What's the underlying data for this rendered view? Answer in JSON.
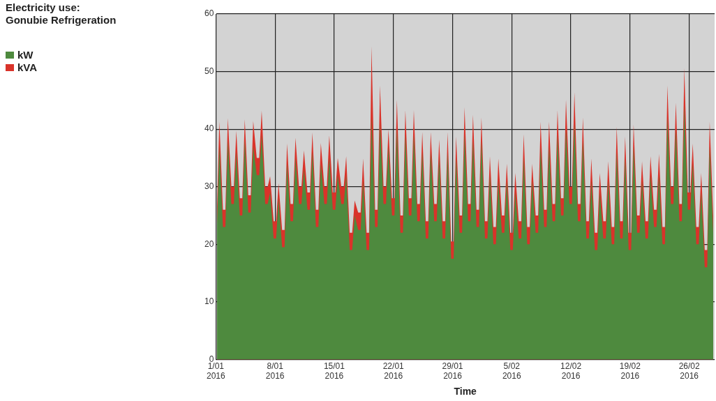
{
  "chart_data": {
    "type": "area",
    "title": "Electricity use:",
    "subtitle": "Gonubie Refrigeration",
    "xlabel": "Time",
    "legend": "left",
    "grid": true,
    "marker": "none",
    "xlim": [
      "2016-01-01",
      "2016-02-29"
    ],
    "xticks": [
      {
        "value": "2016-01-01",
        "label": "1/01 2016"
      },
      {
        "value": "2016-01-08",
        "label": "8/01 2016"
      },
      {
        "value": "2016-01-15",
        "label": "15/01 2016"
      },
      {
        "value": "2016-01-22",
        "label": "22/01 2016"
      },
      {
        "value": "2016-01-29",
        "label": "29/01 2016"
      },
      {
        "value": "2016-02-05",
        "label": "5/02 2016"
      },
      {
        "value": "2016-02-12",
        "label": "12/02 2016"
      },
      {
        "value": "2016-02-19",
        "label": "19/02 2016"
      },
      {
        "value": "2016-02-26",
        "label": "26/02 2016"
      }
    ],
    "ylim": [
      0,
      60
    ],
    "yticks": [
      0,
      10,
      20,
      30,
      40,
      50,
      60
    ],
    "x": [
      "2016-01-01T03:00",
      "2016-01-01T10:00",
      "2016-01-01T20:00",
      "2016-01-02T03:00",
      "2016-01-02T10:00",
      "2016-01-02T20:00",
      "2016-01-03T03:00",
      "2016-01-03T10:00",
      "2016-01-03T20:00",
      "2016-01-04T03:00",
      "2016-01-04T10:00",
      "2016-01-04T20:00",
      "2016-01-05T03:00",
      "2016-01-05T10:00",
      "2016-01-05T20:00",
      "2016-01-06T03:00",
      "2016-01-06T10:00",
      "2016-01-06T20:00",
      "2016-01-07T03:00",
      "2016-01-07T10:00",
      "2016-01-07T20:00",
      "2016-01-08T03:00",
      "2016-01-08T10:00",
      "2016-01-08T20:00",
      "2016-01-09T03:00",
      "2016-01-09T10:00",
      "2016-01-09T20:00",
      "2016-01-10T03:00",
      "2016-01-10T10:00",
      "2016-01-10T20:00",
      "2016-01-11T03:00",
      "2016-01-11T10:00",
      "2016-01-11T20:00",
      "2016-01-12T03:00",
      "2016-01-12T10:00",
      "2016-01-12T20:00",
      "2016-01-13T03:00",
      "2016-01-13T10:00",
      "2016-01-13T20:00",
      "2016-01-14T03:00",
      "2016-01-14T10:00",
      "2016-01-14T20:00",
      "2016-01-15T03:00",
      "2016-01-15T10:00",
      "2016-01-15T20:00",
      "2016-01-16T03:00",
      "2016-01-16T10:00",
      "2016-01-16T20:00",
      "2016-01-17T03:00",
      "2016-01-17T10:00",
      "2016-01-17T20:00",
      "2016-01-18T03:00",
      "2016-01-18T10:00",
      "2016-01-18T20:00",
      "2016-01-19T03:00",
      "2016-01-19T10:00",
      "2016-01-19T20:00",
      "2016-01-20T03:00",
      "2016-01-20T10:00",
      "2016-01-20T20:00",
      "2016-01-21T03:00",
      "2016-01-21T10:00",
      "2016-01-21T20:00",
      "2016-01-22T03:00",
      "2016-01-22T10:00",
      "2016-01-22T20:00",
      "2016-01-23T03:00",
      "2016-01-23T10:00",
      "2016-01-23T20:00",
      "2016-01-24T03:00",
      "2016-01-24T10:00",
      "2016-01-24T20:00",
      "2016-01-25T03:00",
      "2016-01-25T10:00",
      "2016-01-25T20:00",
      "2016-01-26T03:00",
      "2016-01-26T10:00",
      "2016-01-26T20:00",
      "2016-01-27T03:00",
      "2016-01-27T10:00",
      "2016-01-27T20:00",
      "2016-01-28T03:00",
      "2016-01-28T10:00",
      "2016-01-28T20:00",
      "2016-01-29T03:00",
      "2016-01-29T10:00",
      "2016-01-29T20:00",
      "2016-01-30T03:00",
      "2016-01-30T10:00",
      "2016-01-30T20:00",
      "2016-01-31T03:00",
      "2016-01-31T10:00",
      "2016-01-31T20:00",
      "2016-02-01T03:00",
      "2016-02-01T10:00",
      "2016-02-01T20:00",
      "2016-02-02T03:00",
      "2016-02-02T10:00",
      "2016-02-02T20:00",
      "2016-02-03T03:00",
      "2016-02-03T10:00",
      "2016-02-03T20:00",
      "2016-02-04T03:00",
      "2016-02-04T10:00",
      "2016-02-04T20:00",
      "2016-02-05T03:00",
      "2016-02-05T10:00",
      "2016-02-05T20:00",
      "2016-02-06T03:00",
      "2016-02-06T10:00",
      "2016-02-06T20:00",
      "2016-02-07T03:00",
      "2016-02-07T10:00",
      "2016-02-07T20:00",
      "2016-02-08T03:00",
      "2016-02-08T10:00",
      "2016-02-08T20:00",
      "2016-02-09T03:00",
      "2016-02-09T10:00",
      "2016-02-09T20:00",
      "2016-02-10T03:00",
      "2016-02-10T10:00",
      "2016-02-10T20:00",
      "2016-02-11T03:00",
      "2016-02-11T10:00",
      "2016-02-11T20:00",
      "2016-02-12T03:00",
      "2016-02-12T10:00",
      "2016-02-12T20:00",
      "2016-02-13T03:00",
      "2016-02-13T10:00",
      "2016-02-13T20:00",
      "2016-02-14T03:00",
      "2016-02-14T10:00",
      "2016-02-14T20:00",
      "2016-02-15T03:00",
      "2016-02-15T10:00",
      "2016-02-15T20:00",
      "2016-02-16T03:00",
      "2016-02-16T10:00",
      "2016-02-16T20:00",
      "2016-02-17T03:00",
      "2016-02-17T10:00",
      "2016-02-17T20:00",
      "2016-02-18T03:00",
      "2016-02-18T10:00",
      "2016-02-18T20:00",
      "2016-02-19T03:00",
      "2016-02-19T10:00",
      "2016-02-19T20:00",
      "2016-02-20T03:00",
      "2016-02-20T10:00",
      "2016-02-20T20:00",
      "2016-02-21T03:00",
      "2016-02-21T10:00",
      "2016-02-21T20:00",
      "2016-02-22T03:00",
      "2016-02-22T10:00",
      "2016-02-22T20:00",
      "2016-02-23T03:00",
      "2016-02-23T10:00",
      "2016-02-23T20:00",
      "2016-02-24T03:00",
      "2016-02-24T10:00",
      "2016-02-24T20:00",
      "2016-02-25T03:00",
      "2016-02-25T10:00",
      "2016-02-25T20:00",
      "2016-02-26T03:00",
      "2016-02-26T10:00",
      "2016-02-26T20:00",
      "2016-02-27T03:00",
      "2016-02-27T10:00",
      "2016-02-27T20:00",
      "2016-02-28T03:00",
      "2016-02-28T10:00",
      "2016-02-28T20:00"
    ],
    "series": [
      {
        "name": "kW",
        "color": "#4e8a3e",
        "values": [
          23,
          37,
          23,
          23,
          38,
          27,
          27,
          36,
          25,
          25,
          38,
          25.5,
          25.5,
          37,
          32,
          32,
          39,
          27,
          27,
          29,
          21,
          21,
          28,
          19.5,
          19.5,
          34,
          24,
          24,
          35,
          27,
          27,
          33,
          26,
          26,
          36,
          23,
          23,
          34,
          27,
          27,
          35,
          26,
          26,
          32,
          27,
          27,
          32,
          19,
          19,
          25,
          22.5,
          22.5,
          31,
          19,
          19,
          42,
          23,
          23,
          41,
          27,
          27,
          37,
          25,
          25,
          40,
          22,
          22,
          39,
          25,
          25,
          39,
          24,
          24,
          36,
          21,
          21,
          36,
          24,
          24,
          35,
          21,
          21,
          36,
          17.5,
          17.5,
          35,
          22,
          22,
          39,
          24,
          24,
          38,
          23,
          23,
          38,
          21,
          21,
          32,
          20,
          20,
          31,
          22,
          22,
          31,
          19,
          19,
          29,
          21,
          21,
          35,
          20,
          20,
          31,
          22,
          22,
          37,
          23,
          23,
          37,
          24,
          24,
          39,
          25,
          25,
          40,
          27,
          27,
          41,
          24,
          24,
          38,
          21,
          21,
          31,
          19,
          19,
          29,
          21,
          21,
          31,
          20,
          20,
          36,
          21,
          21,
          35,
          19,
          19,
          37,
          22,
          22,
          31,
          21,
          21,
          32,
          23,
          23,
          32,
          20,
          20,
          42,
          27,
          27,
          40,
          24,
          24,
          44,
          26,
          26,
          34,
          20,
          20,
          29,
          16,
          16,
          37,
          22
        ]
      },
      {
        "name": "kVA",
        "color": "#d9332a",
        "values": [
          26,
          41.3,
          26,
          26,
          41.9,
          30,
          30,
          39.7,
          28,
          28,
          41.7,
          28.5,
          28.5,
          41.4,
          35,
          35,
          43.2,
          30,
          30,
          31.8,
          24,
          24,
          30.6,
          22.5,
          22.5,
          37.5,
          27,
          27,
          38.5,
          30,
          30,
          36.3,
          29,
          29,
          39.4,
          26,
          26,
          37.6,
          30,
          30,
          38.9,
          29,
          29,
          35,
          30,
          30,
          35.3,
          22,
          22,
          27.6,
          25.5,
          25.5,
          34.9,
          22,
          22,
          54.4,
          26,
          26,
          47.6,
          30,
          30,
          40,
          28,
          28,
          45.1,
          25,
          25,
          43.3,
          28,
          28,
          43.3,
          27,
          27,
          39.5,
          24,
          24,
          39.5,
          27,
          27,
          38.2,
          24,
          24,
          39.5,
          20.5,
          20.5,
          38.7,
          25,
          25,
          43.8,
          27,
          27,
          42.5,
          26,
          26,
          42,
          24,
          24,
          35.3,
          23,
          23,
          34.9,
          25,
          25,
          34,
          22,
          22,
          32.4,
          24,
          24,
          39.1,
          23,
          23,
          34,
          25,
          25,
          41.3,
          26,
          26,
          41.3,
          27,
          27,
          43.3,
          28,
          28,
          45.1,
          30,
          30,
          46.4,
          27,
          27,
          42,
          24,
          24,
          34.9,
          22,
          22,
          32.4,
          24,
          24,
          34.4,
          23,
          23,
          40.4,
          24,
          24,
          38.7,
          22,
          22,
          40.8,
          25,
          25,
          34.4,
          24,
          24,
          35.3,
          26,
          26,
          35.7,
          23,
          23,
          47.6,
          30,
          30,
          44.6,
          27,
          27,
          50.6,
          29,
          29,
          37.5,
          23,
          23,
          32.4,
          19,
          19,
          41.3,
          25
        ]
      }
    ]
  }
}
